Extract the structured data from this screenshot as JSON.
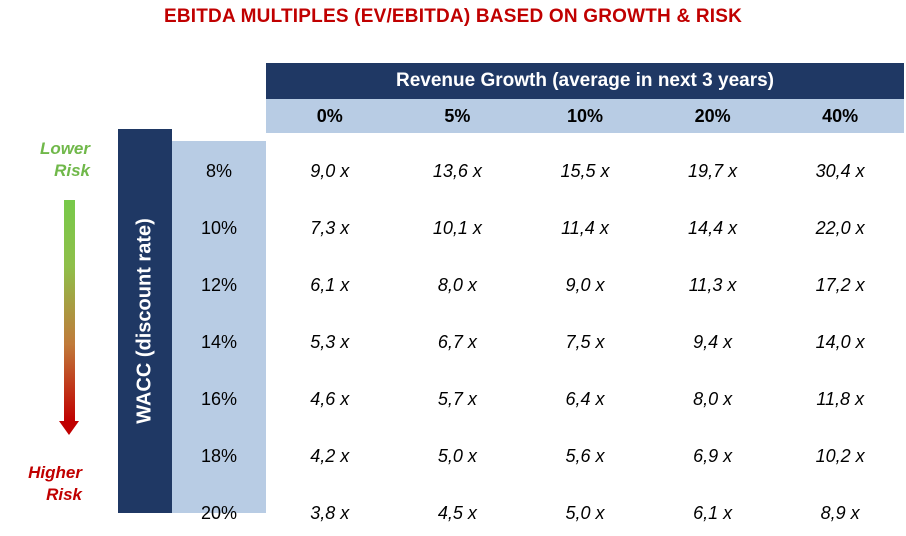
{
  "chart_data": {
    "type": "table",
    "title": "EBITDA MULTIPLES (EV/EBITDA) BASED ON GROWTH & RISK",
    "column_group_label": "Revenue Growth (average in next 3 years)",
    "row_group_label": "WACC (discount rate)",
    "columns": [
      "0%",
      "5%",
      "10%",
      "20%",
      "40%"
    ],
    "rows": [
      {
        "rate": "8%",
        "values": [
          "9,0 x",
          "13,6 x",
          "15,5 x",
          "19,7 x",
          "30,4 x"
        ]
      },
      {
        "rate": "10%",
        "values": [
          "7,3 x",
          "10,1 x",
          "11,4 x",
          "14,4 x",
          "22,0 x"
        ]
      },
      {
        "rate": "12%",
        "values": [
          "6,1 x",
          "8,0 x",
          "9,0 x",
          "11,3 x",
          "17,2 x"
        ]
      },
      {
        "rate": "14%",
        "values": [
          "5,3 x",
          "6,7 x",
          "7,5 x",
          "9,4 x",
          "14,0 x"
        ]
      },
      {
        "rate": "16%",
        "values": [
          "4,6 x",
          "5,7 x",
          "6,4 x",
          "8,0 x",
          "11,8 x"
        ]
      },
      {
        "rate": "18%",
        "values": [
          "4,2 x",
          "5,0 x",
          "5,6 x",
          "6,9 x",
          "10,2 x"
        ]
      },
      {
        "rate": "20%",
        "values": [
          "3,8 x",
          "4,5 x",
          "5,0 x",
          "6,1 x",
          "8,9 x"
        ]
      }
    ],
    "risk_scale": {
      "low_label": "Lower Risk",
      "high_label": "Higher Risk"
    }
  },
  "colors": {
    "title": "#c00000",
    "header_dark": "#1f3864",
    "header_light": "#b8cce4",
    "low_risk": "#70b84a",
    "high_risk": "#c00000"
  }
}
